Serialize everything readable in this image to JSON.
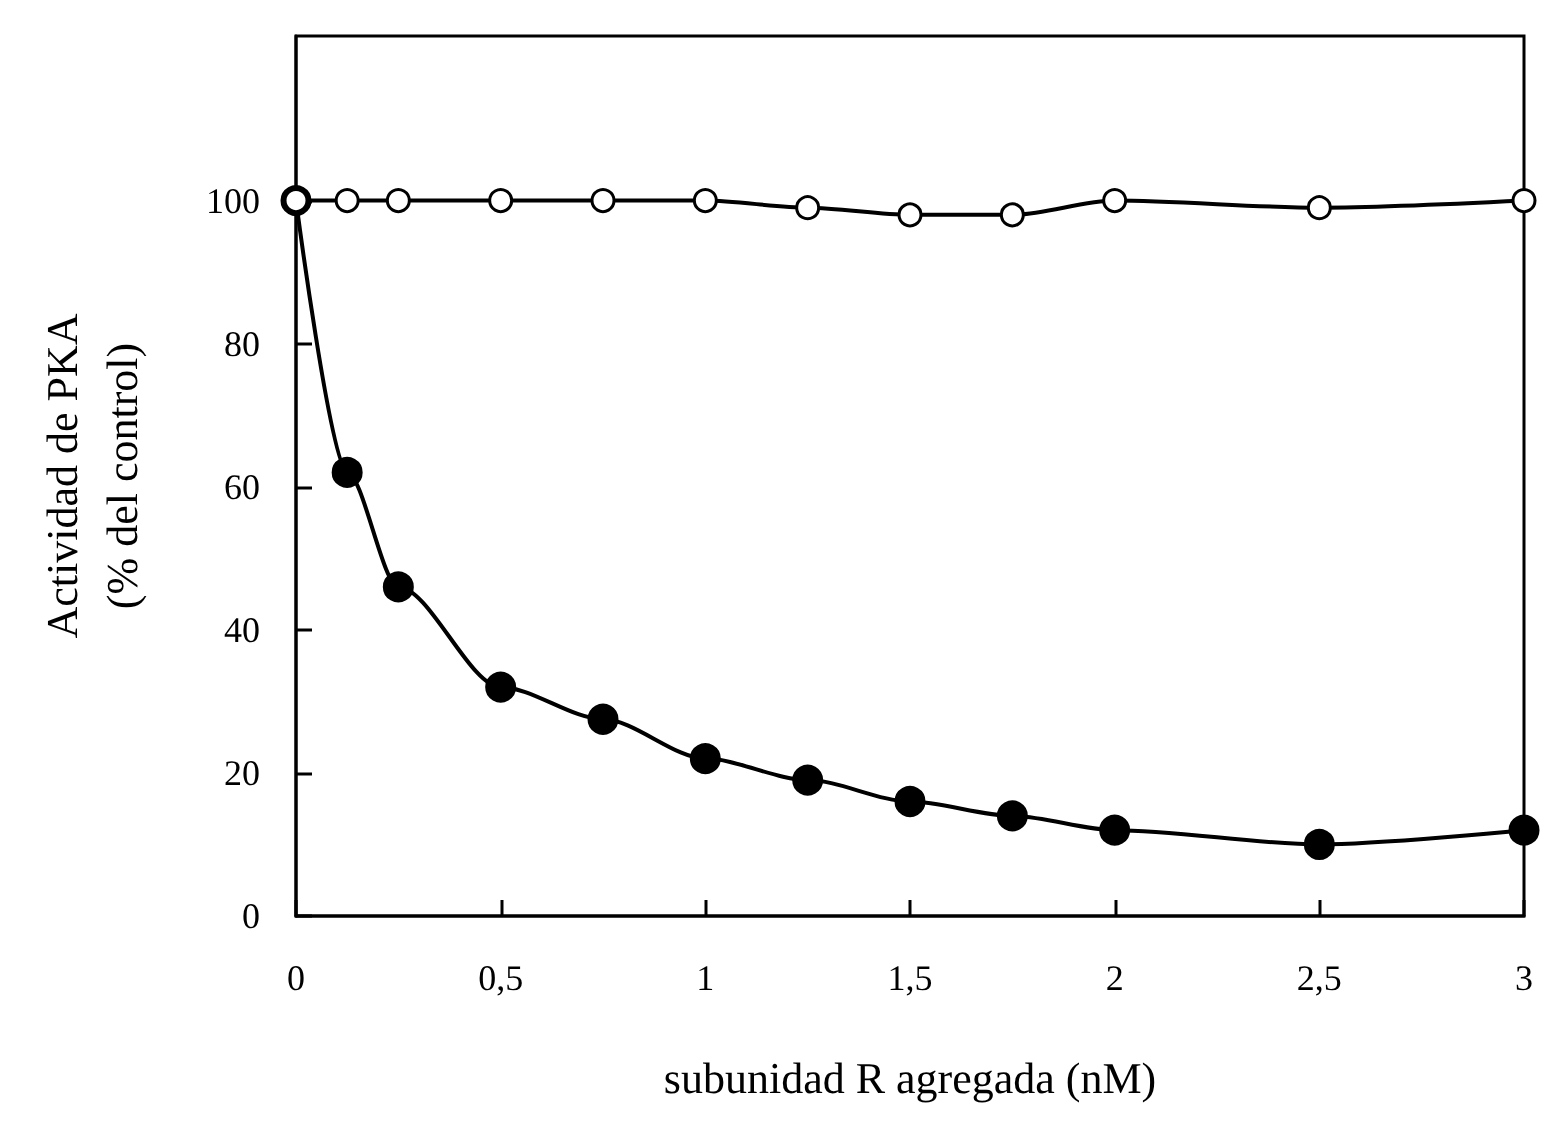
{
  "chart_data": {
    "type": "line",
    "xlabel": "subunidad R agregada (nM)",
    "ylabel": "Actividad de PKA\n(% del control)",
    "x": [
      0,
      0.125,
      0.25,
      0.5,
      0.75,
      1,
      1.25,
      1.5,
      1.75,
      2,
      2.5,
      3
    ],
    "series": [
      {
        "color": "#ffffff",
        "values": [
          100,
          100,
          100,
          100,
          100,
          100,
          99,
          98,
          98,
          100,
          99,
          100
        ]
      },
      {
        "color": "#000000",
        "values": [
          100,
          62,
          46,
          32,
          27.5,
          22,
          19,
          16,
          14,
          12,
          10,
          12
        ]
      }
    ],
    "xlim": [
      0,
      3
    ],
    "xticks": [
      0,
      {
        "value": 0.5,
        "label": "0,5"
      },
      1,
      {
        "value": 1.5,
        "label": "1,5"
      },
      2,
      {
        "value": 2.5,
        "label": "2,5"
      },
      3
    ],
    "ylim": [
      0,
      123
    ],
    "yticks": [
      0,
      20,
      40,
      60,
      80,
      100
    ],
    "marker": "circle",
    "line_style": "solid"
  }
}
